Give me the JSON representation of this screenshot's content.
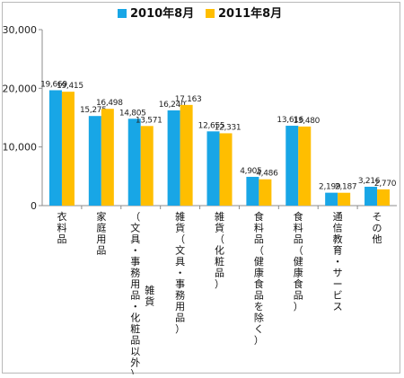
{
  "chart_data": {
    "type": "bar",
    "title": "",
    "xlabel": "",
    "ylabel": "",
    "ylim": [
      0,
      30000
    ],
    "yticks": [
      0,
      10000,
      20000,
      30000
    ],
    "ytick_labels": [
      "0",
      "10,000",
      "20,000",
      "30,000"
    ],
    "grid": false,
    "legend_position": "top-center",
    "categories": [
      "衣料品",
      "家庭用品",
      "（文具・事務用品・化粧品以外）雑貨",
      "雑貨（文具・事務用品）",
      "雑貨（化粧品）",
      "食料品（健康食品を除く）",
      "食料品（健康食品）",
      "通信教育・サービス",
      "その他"
    ],
    "series": [
      {
        "name": "2010年8月",
        "color": "#18a6e6",
        "values": [
          19669,
          15275,
          14805,
          16240,
          12655,
          4905,
          13616,
          2199,
          3216
        ],
        "labels": [
          "19,669",
          "15,275",
          "14,805",
          "16,240",
          "12,655",
          "4,905",
          "13,616",
          "2,199",
          "3,216"
        ]
      },
      {
        "name": "2011年8月",
        "color": "#ffbe00",
        "values": [
          19415,
          16498,
          13571,
          17163,
          12331,
          4486,
          13480,
          2187,
          2770
        ],
        "labels": [
          "19,415",
          "16,498",
          "13,571",
          "17,163",
          "12,331",
          "4,486",
          "13,480",
          "2,187",
          "2,770"
        ]
      }
    ]
  }
}
